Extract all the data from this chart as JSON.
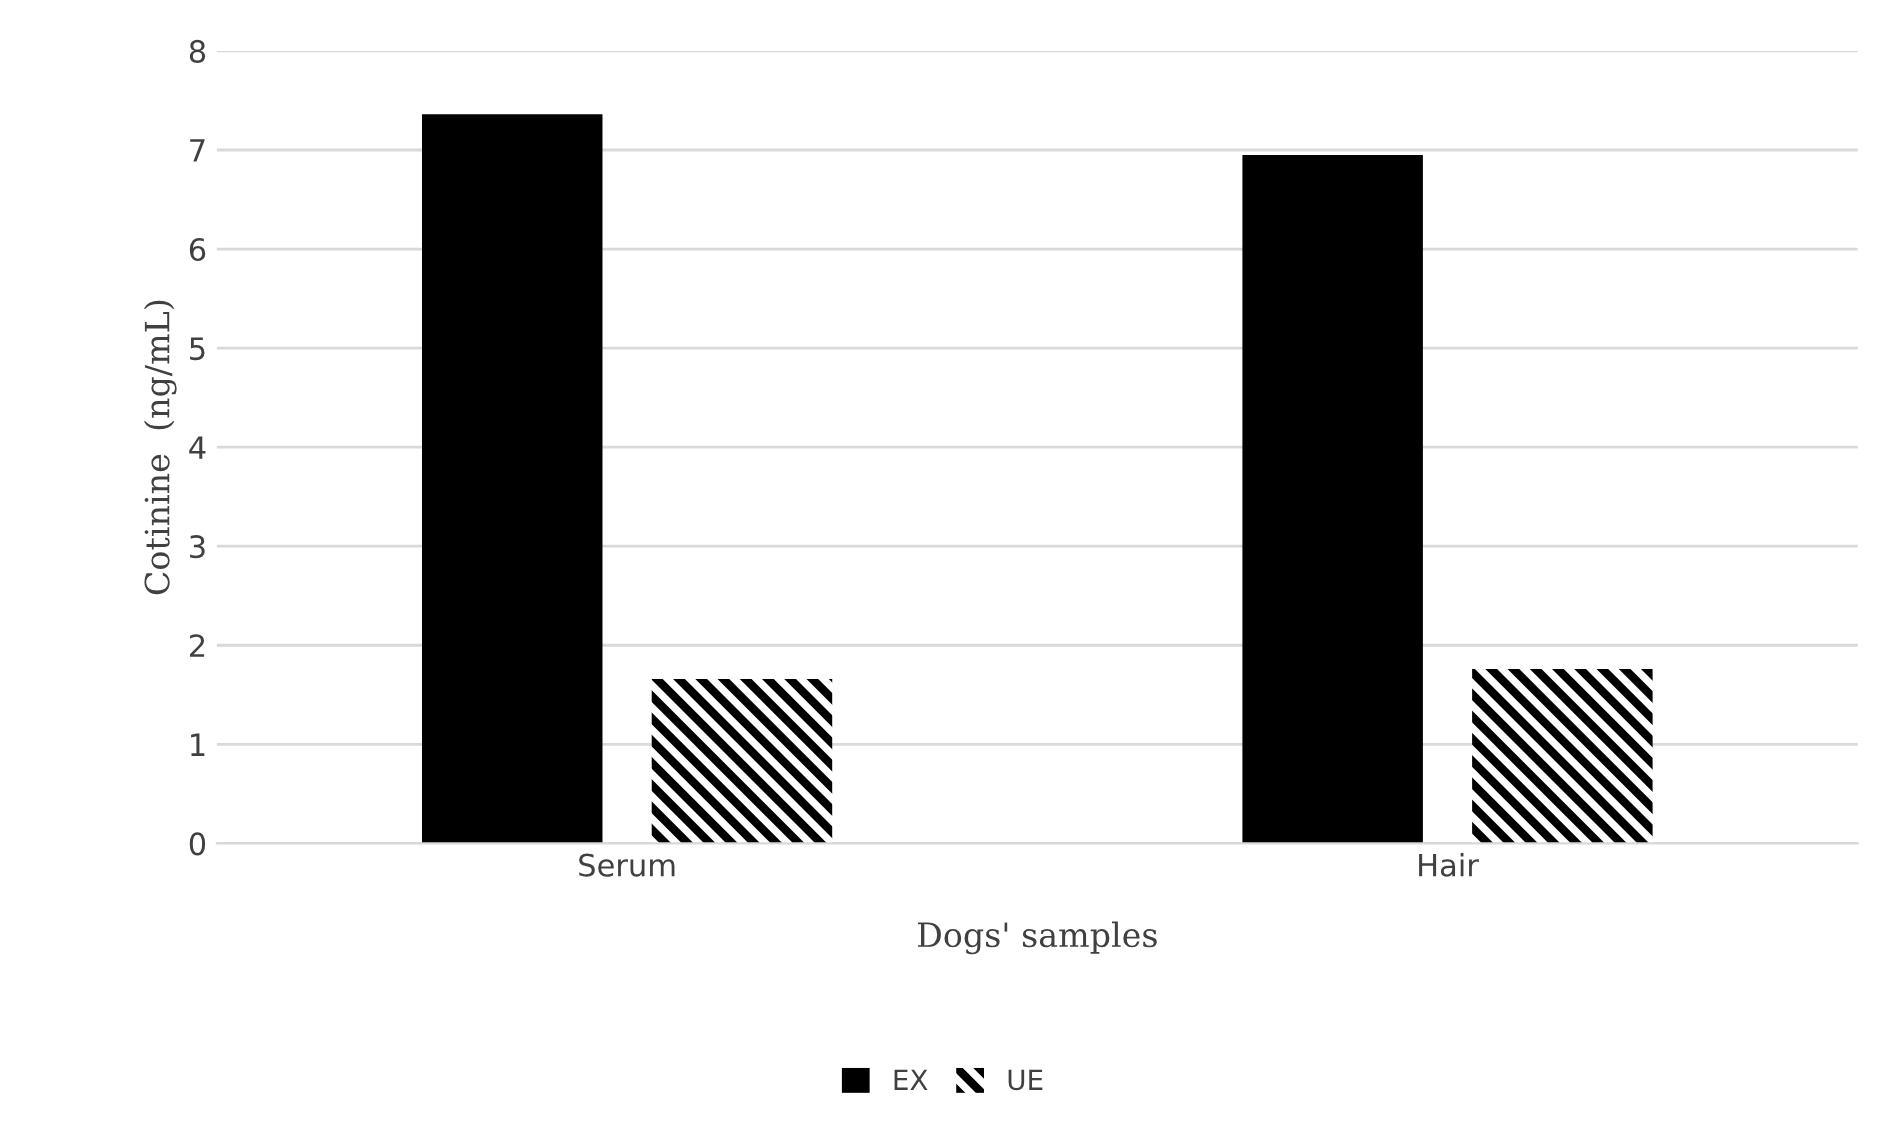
{
  "chart_data": {
    "type": "bar",
    "xlabel": "Dogs' samples",
    "ylabel": "Cotinine  (ng/mL)",
    "categories": [
      "Serum",
      "Hair"
    ],
    "series": [
      {
        "name": "EX",
        "color": "#000000",
        "values": [
          7.36,
          6.95
        ]
      },
      {
        "name": "UE",
        "color": "#000000",
        "values": [
          1.66,
          1.76
        ]
      }
    ],
    "ylim": [
      0,
      8
    ],
    "yticks": [
      0,
      1,
      2,
      3,
      4,
      5,
      6,
      7,
      8
    ],
    "grid": "y",
    "legend": "bottom"
  }
}
